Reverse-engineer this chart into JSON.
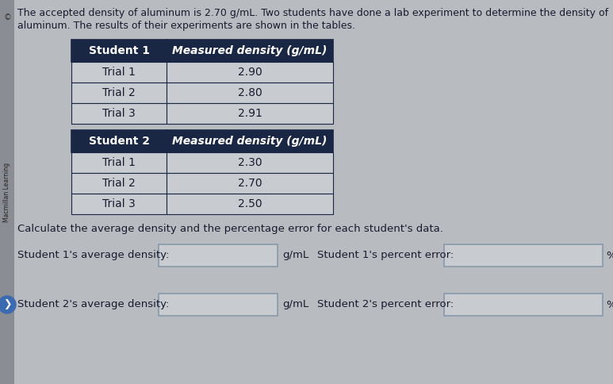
{
  "bg_color": "#b8bcc0",
  "text_color": "#1a1a2e",
  "intro_text_line1": "The accepted density of aluminum is 2.70 g/mL. Two students have done a lab experiment to determine the density of",
  "intro_text_line2": "aluminum. The results of their experiments are shown in the tables.",
  "sidebar_text": "Macmillan Learning",
  "table1_header": [
    "Student 1",
    "Measured density (g/mL)"
  ],
  "table1_rows": [
    [
      "Trial 1",
      "2.90"
    ],
    [
      "Trial 2",
      "2.80"
    ],
    [
      "Trial 3",
      "2.91"
    ]
  ],
  "table2_header": [
    "Student 2",
    "Measured density (g/mL)"
  ],
  "table2_rows": [
    [
      "Trial 1",
      "2.30"
    ],
    [
      "Trial 2",
      "2.70"
    ],
    [
      "Trial 3",
      "2.50"
    ]
  ],
  "calc_text": "Calculate the average density and the percentage error for each student's data.",
  "label_s1_avg": "Student 1's average density:",
  "label_s1_err": "Student 1's percent error:",
  "label_s2_avg": "Student 2's average density:",
  "label_s2_err": "Student 2's percent error:",
  "unit_gml": "g/mL",
  "unit_pct": "%",
  "table_header_color": "#1a2744",
  "table_row_color_light": "#c8ccd0",
  "table_border_color": "#1a2744",
  "input_box_facecolor": "#c8ccd0",
  "input_box_border": "#8899aa",
  "sidebar_bg": "#8a8e94",
  "circle_color": "#3a6ab0"
}
